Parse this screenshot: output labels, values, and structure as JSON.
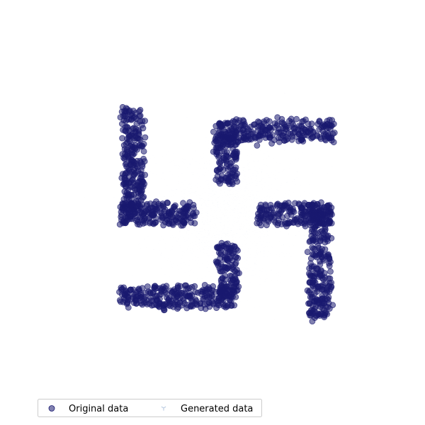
{
  "chart_data": {
    "type": "scatter",
    "title": "",
    "xlabel": "",
    "ylabel": "",
    "axes_visible": false,
    "grid": false,
    "xlim": [
      -1.25,
      1.25
    ],
    "ylim": [
      -1.25,
      1.25
    ],
    "legend": {
      "placement": "bottom-left",
      "columns": 2,
      "entries": [
        "Original data",
        "Generated data"
      ]
    },
    "series": [
      {
        "name": "Original data",
        "marker": "circle",
        "color": "#191970",
        "alpha": 0.55,
        "shape": "pinwheel-of-four-L-bands",
        "segments": [
          {
            "x": [
              -0.1,
              0.1
            ],
            "y": [
              0.28,
              0.75
            ]
          },
          {
            "x": [
              -0.1,
              1.0
            ],
            "y": [
              0.68,
              0.88
            ]
          },
          {
            "x": [
              0.28,
              1.0
            ],
            "y": [
              -0.1,
              0.1
            ]
          },
          {
            "x": [
              0.78,
              0.98
            ],
            "y": [
              -0.98,
              0.1
            ]
          },
          {
            "x": [
              -0.1,
              0.1
            ],
            "y": [
              -0.75,
              -0.28
            ]
          },
          {
            "x": [
              -1.0,
              0.1
            ],
            "y": [
              -0.88,
              -0.68
            ]
          },
          {
            "x": [
              -1.0,
              -0.28
            ],
            "y": [
              -0.1,
              0.1
            ]
          },
          {
            "x": [
              -0.98,
              -0.78
            ],
            "y": [
              -0.1,
              0.98
            ]
          }
        ]
      },
      {
        "name": "Generated data",
        "marker": "tri_down",
        "color": "#b0c4de",
        "alpha": 0.75,
        "distribution": "gaussian-cloud",
        "center": [
          0.0,
          0.0
        ],
        "std": 0.33
      }
    ]
  }
}
